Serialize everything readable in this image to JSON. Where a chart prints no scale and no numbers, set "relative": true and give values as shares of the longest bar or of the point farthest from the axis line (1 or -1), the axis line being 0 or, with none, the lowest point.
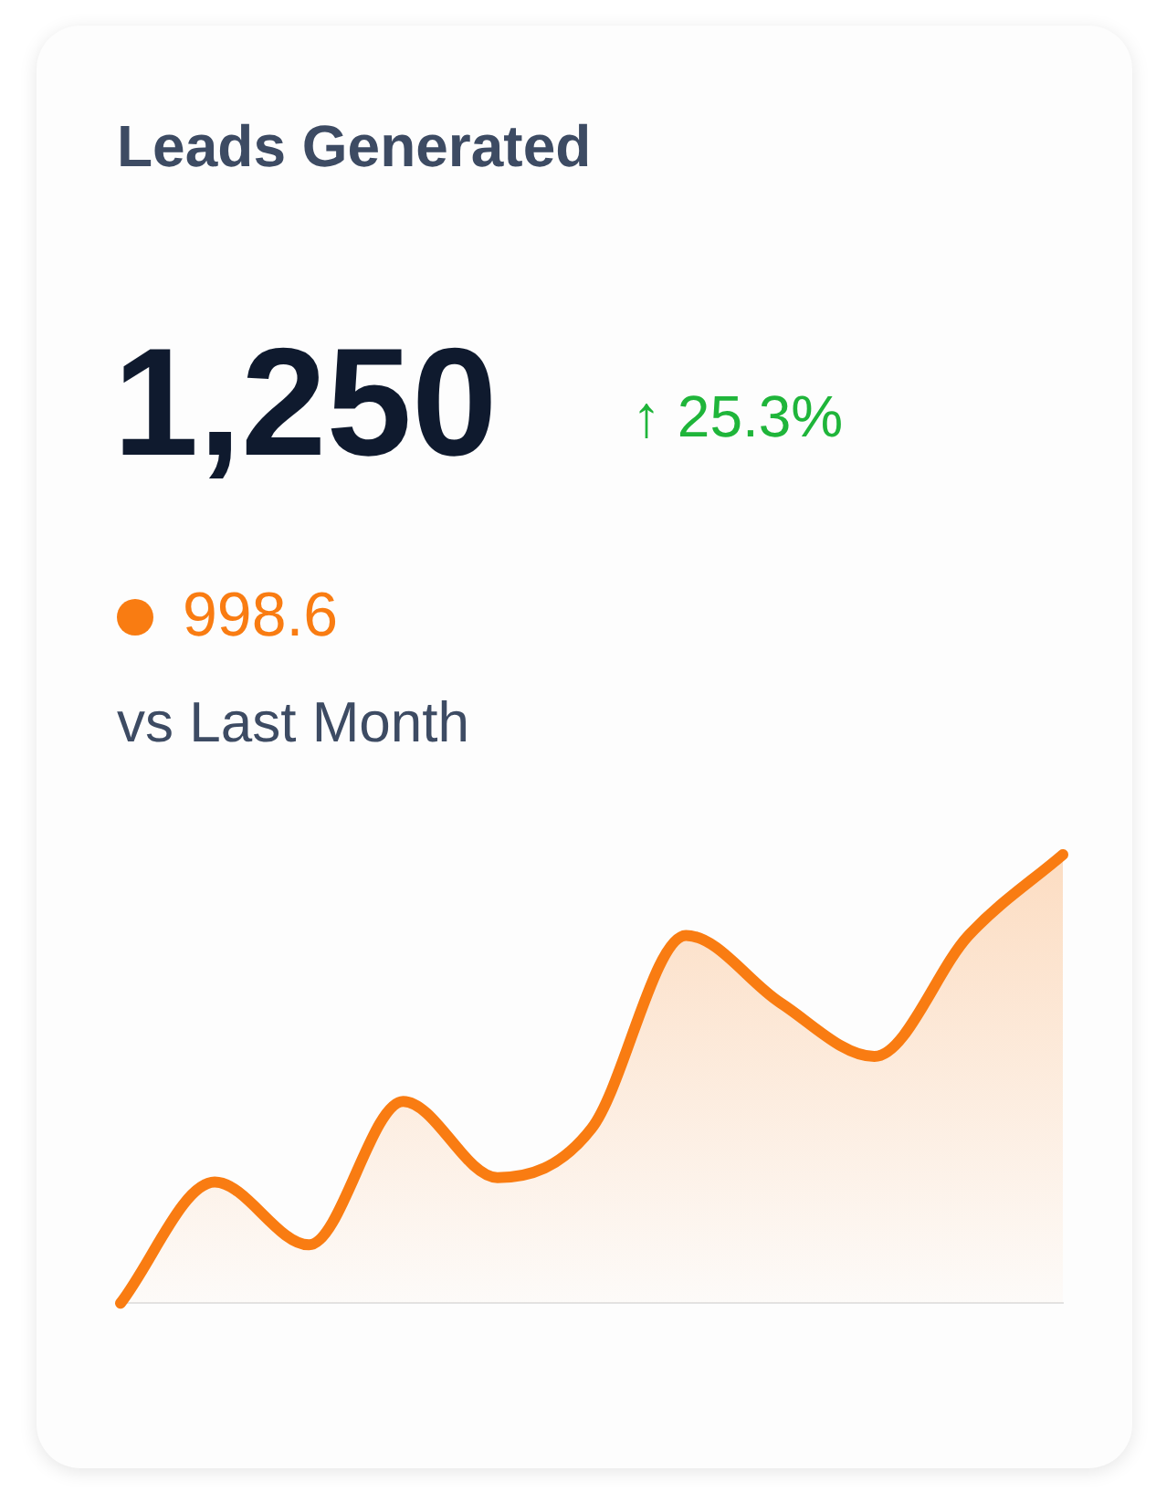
{
  "chart_data": {
    "type": "area",
    "title": "Leads Generated",
    "annotations": [
      "1,250",
      "↑ 25.3%",
      "998.6",
      "vs Last Month"
    ],
    "relative": true,
    "categories": [
      null,
      null,
      null,
      null,
      null,
      null,
      null,
      null,
      null,
      null,
      null
    ],
    "series": [
      {
        "color": "#f97c12",
        "values": [
          0,
          0.27,
          0.13,
          0.45,
          0.28,
          0.39,
          0.82,
          0.67,
          0.55,
          0.82,
          1
        ]
      }
    ],
    "legend": false,
    "grid": false
  }
}
